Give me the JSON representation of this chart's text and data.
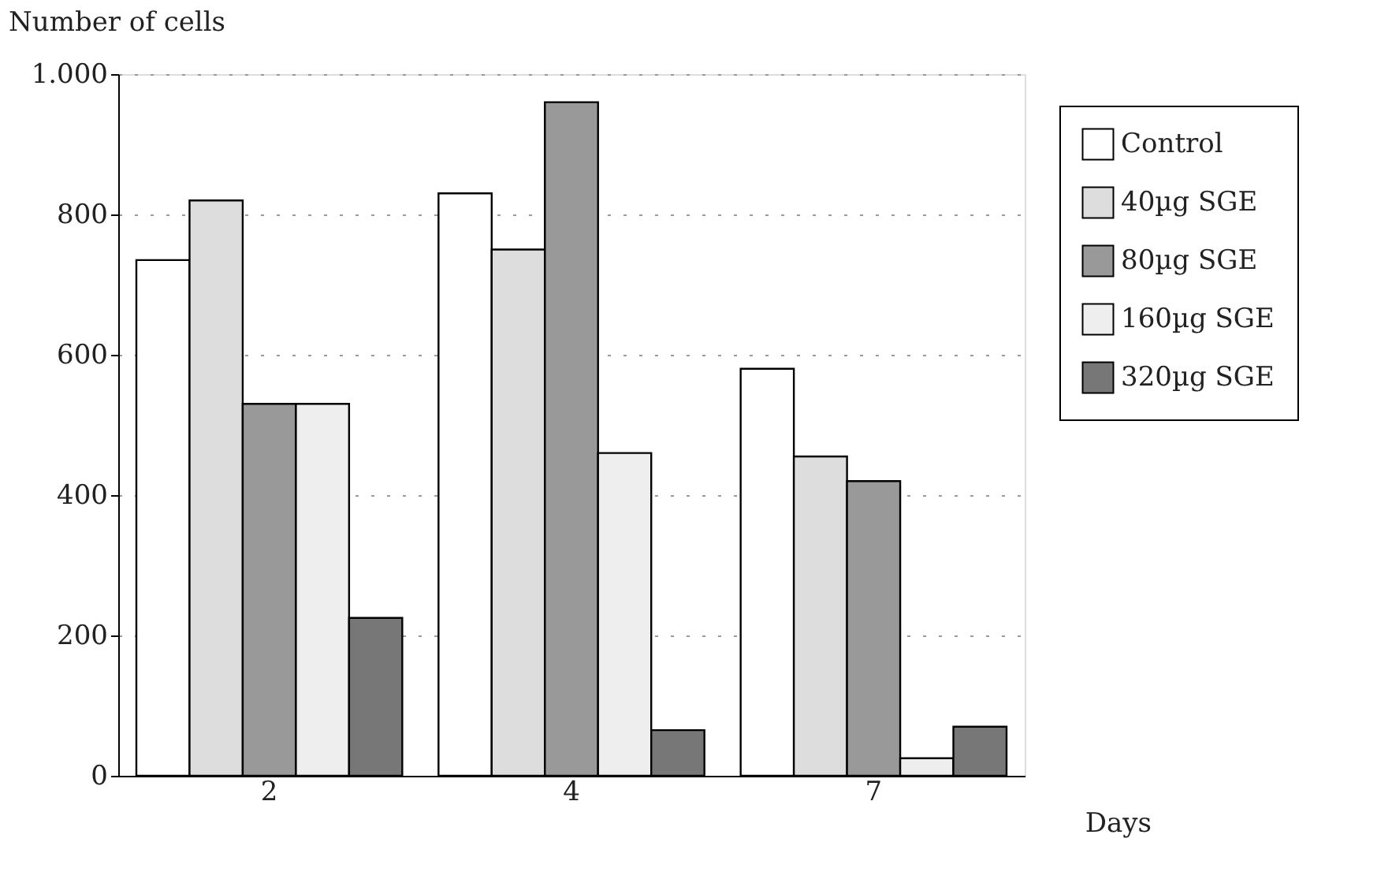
{
  "chart_data": {
    "type": "bar",
    "xlabel": "Days",
    "ylabel": "Number of cells",
    "categories": [
      "2",
      "4",
      "7"
    ],
    "series": [
      {
        "name": "Control",
        "color": "#ffffff",
        "values": [
          735,
          830,
          580
        ]
      },
      {
        "name": " 40µg  SGE",
        "color": "#dddddd",
        "values": [
          820,
          750,
          455
        ]
      },
      {
        "name": " 80µg  SGE",
        "color": "#999999",
        "values": [
          530,
          960,
          420
        ]
      },
      {
        "name": "160µg SGE",
        "color": "#eeeeee",
        "values": [
          530,
          460,
          25
        ]
      },
      {
        "name": "320µg SGE",
        "color": "#777777",
        "values": [
          225,
          65,
          70
        ]
      }
    ],
    "ylim": [
      0,
      1000
    ],
    "yticks": [
      0,
      200,
      400,
      600,
      800,
      {
        "value": 1000,
        "label": "1.000"
      }
    ],
    "grid": "y",
    "legend": "top right"
  }
}
